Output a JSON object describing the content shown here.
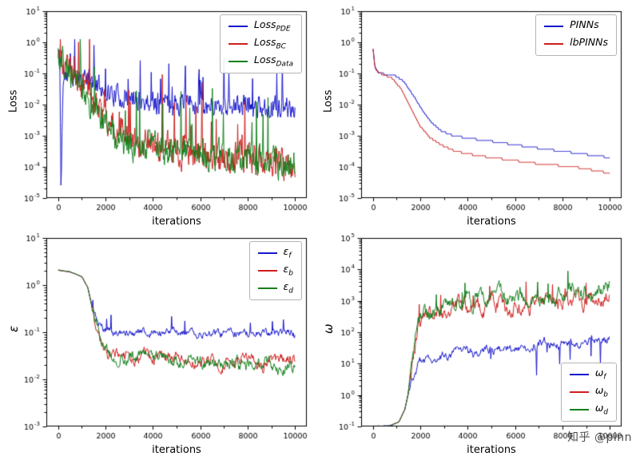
{
  "watermark": {
    "text": "知乎 @pinn"
  },
  "figure": {
    "background": "#ffffff",
    "frame_color": "#000000"
  },
  "chart_data": [
    {
      "id": "loss-components",
      "type": "line",
      "title": "",
      "xlabel": "iterations",
      "ylabel": "Loss",
      "xlim": [
        -500,
        10500
      ],
      "xticks": [
        0,
        2000,
        4000,
        6000,
        8000,
        10000
      ],
      "yticks_exponents": [
        -5,
        -4,
        -3,
        -2,
        -1,
        0,
        1
      ],
      "yscale": "log",
      "grid": false,
      "legend_position": "upper right",
      "clip": [
        -5,
        0.1
      ],
      "series": [
        {
          "legend": {
            "main": "Loss",
            "sub": "PDE"
          },
          "color": "#1616cc",
          "seed": 11,
          "noise": 0.5,
          "smooth": 0.4,
          "spikes": {
            "prob": 0.05,
            "amp": 1.6
          },
          "points": [
            [
              0,
              -0.25
            ],
            [
              70,
              -0.6
            ],
            [
              120,
              -4.9
            ],
            [
              200,
              -1.3
            ],
            [
              350,
              -1.05
            ],
            [
              700,
              -1.05
            ],
            [
              1200,
              -1.15
            ],
            [
              2000,
              -1.55
            ],
            [
              3000,
              -1.85
            ],
            [
              4500,
              -1.95
            ],
            [
              6000,
              -2.0
            ],
            [
              8000,
              -2.05
            ],
            [
              10000,
              -2.1
            ]
          ]
        },
        {
          "legend": {
            "main": "Loss",
            "sub": "BC"
          },
          "color": "#cf1d1d",
          "seed": 23,
          "noise": 0.8,
          "smooth": 0.45,
          "spikes": {
            "prob": 0.035,
            "amp": 2.2
          },
          "points": [
            [
              0,
              -0.15
            ],
            [
              120,
              -0.6
            ],
            [
              300,
              -0.85
            ],
            [
              700,
              -1.05
            ],
            [
              1200,
              -1.5
            ],
            [
              1800,
              -2.2
            ],
            [
              2600,
              -2.8
            ],
            [
              3600,
              -3.2
            ],
            [
              5000,
              -3.5
            ],
            [
              7000,
              -3.7
            ],
            [
              9000,
              -3.85
            ],
            [
              10000,
              -3.95
            ]
          ]
        },
        {
          "legend": {
            "main": "Loss",
            "sub": "Data"
          },
          "color": "#13801c",
          "seed": 37,
          "noise": 0.8,
          "smooth": 0.45,
          "spikes": {
            "prob": 0.03,
            "amp": 1.8
          },
          "points": [
            [
              0,
              -0.2
            ],
            [
              150,
              -0.6
            ],
            [
              400,
              -0.95
            ],
            [
              900,
              -1.15
            ],
            [
              1500,
              -2.1
            ],
            [
              2200,
              -2.9
            ],
            [
              3200,
              -3.3
            ],
            [
              4500,
              -3.5
            ],
            [
              6500,
              -3.65
            ],
            [
              8500,
              -3.8
            ],
            [
              10000,
              -3.9
            ]
          ]
        }
      ]
    },
    {
      "id": "pinns-vs-lbpinns",
      "type": "line",
      "title": "",
      "xlabel": "iterations",
      "ylabel": "Loss",
      "xlim": [
        -500,
        10500
      ],
      "xticks": [
        0,
        2000,
        4000,
        6000,
        8000,
        10000
      ],
      "yticks_exponents": [
        -5,
        -4,
        -3,
        -2,
        -1,
        0,
        1
      ],
      "yscale": "log",
      "grid": false,
      "legend_position": "upper right",
      "clip": [
        -5,
        1
      ],
      "series": [
        {
          "legend": {
            "main": "PINNs",
            "sub": ""
          },
          "color": "#1616cc",
          "seed": 41,
          "noise": 0,
          "smooth": 0,
          "quantize": 0.07,
          "points": [
            [
              0,
              -0.2
            ],
            [
              90,
              -0.8
            ],
            [
              250,
              -1.0
            ],
            [
              900,
              -1.05
            ],
            [
              1300,
              -1.25
            ],
            [
              1700,
              -1.7
            ],
            [
              2100,
              -2.2
            ],
            [
              2500,
              -2.6
            ],
            [
              2900,
              -2.85
            ],
            [
              3400,
              -3.0
            ],
            [
              4200,
              -3.1
            ],
            [
              5200,
              -3.2
            ],
            [
              6500,
              -3.35
            ],
            [
              8000,
              -3.5
            ],
            [
              9000,
              -3.6
            ],
            [
              10000,
              -3.7
            ]
          ]
        },
        {
          "legend": {
            "main": "lbPINNs",
            "sub": ""
          },
          "color": "#cf1d1d",
          "seed": 43,
          "noise": 0,
          "smooth": 0,
          "quantize": 0.07,
          "points": [
            [
              0,
              -0.18
            ],
            [
              90,
              -0.85
            ],
            [
              300,
              -1.0
            ],
            [
              800,
              -1.15
            ],
            [
              1200,
              -1.5
            ],
            [
              1600,
              -2.1
            ],
            [
              2000,
              -2.7
            ],
            [
              2400,
              -3.05
            ],
            [
              2900,
              -3.3
            ],
            [
              3500,
              -3.5
            ],
            [
              4500,
              -3.65
            ],
            [
              5500,
              -3.75
            ],
            [
              7000,
              -3.9
            ],
            [
              8500,
              -4.0
            ],
            [
              10000,
              -4.2
            ]
          ]
        }
      ]
    },
    {
      "id": "epsilon",
      "type": "line",
      "title": "",
      "xlabel": "iterations",
      "ylabel": "ε",
      "xlim": [
        -500,
        10500
      ],
      "xticks": [
        0,
        2000,
        4000,
        6000,
        8000,
        10000
      ],
      "yticks_exponents": [
        -3,
        -2,
        -1,
        0,
        1
      ],
      "yscale": "log",
      "grid": false,
      "legend_position": "upper right",
      "clip": [
        -3,
        0.35
      ],
      "series": [
        {
          "legend": {
            "main": "ε",
            "sub": "f"
          },
          "color": "#1616cc",
          "seed": 53,
          "noise": 0.25,
          "smooth": 0.75,
          "noise_from": 1400,
          "spikes": {
            "prob": 0.02,
            "amp": 0.35
          },
          "points": [
            [
              0,
              0.32
            ],
            [
              500,
              0.28
            ],
            [
              1000,
              0.18
            ],
            [
              1250,
              -0.05
            ],
            [
              1500,
              -0.6
            ],
            [
              1800,
              -0.9
            ],
            [
              2300,
              -0.97
            ],
            [
              3500,
              -1.0
            ],
            [
              6000,
              -1.0
            ],
            [
              8000,
              -1.02
            ],
            [
              10000,
              -1.05
            ]
          ]
        },
        {
          "legend": {
            "main": "ε",
            "sub": "b"
          },
          "color": "#cf1d1d",
          "seed": 59,
          "noise": 0.5,
          "smooth": 0.82,
          "noise_from": 1400,
          "points": [
            [
              0,
              0.32
            ],
            [
              500,
              0.28
            ],
            [
              1000,
              0.18
            ],
            [
              1250,
              -0.05
            ],
            [
              1500,
              -0.62
            ],
            [
              1800,
              -1.15
            ],
            [
              2300,
              -1.45
            ],
            [
              3000,
              -1.5
            ],
            [
              5000,
              -1.55
            ],
            [
              7000,
              -1.6
            ],
            [
              9000,
              -1.68
            ],
            [
              10000,
              -1.6
            ]
          ]
        },
        {
          "legend": {
            "main": "ε",
            "sub": "d"
          },
          "color": "#13801c",
          "seed": 61,
          "noise": 0.55,
          "smooth": 0.82,
          "noise_from": 1400,
          "points": [
            [
              0,
              0.32
            ],
            [
              500,
              0.28
            ],
            [
              1000,
              0.18
            ],
            [
              1250,
              -0.05
            ],
            [
              1500,
              -0.64
            ],
            [
              1800,
              -1.2
            ],
            [
              2300,
              -1.5
            ],
            [
              3000,
              -1.55
            ],
            [
              5000,
              -1.6
            ],
            [
              7000,
              -1.68
            ],
            [
              10000,
              -1.75
            ]
          ]
        }
      ]
    },
    {
      "id": "omega",
      "type": "line",
      "title": "",
      "xlabel": "iterations",
      "ylabel": "ω",
      "xlim": [
        -500,
        10500
      ],
      "xticks": [
        0,
        2000,
        4000,
        6000,
        8000,
        10000
      ],
      "yticks_exponents": [
        -1,
        0,
        1,
        2,
        3,
        4,
        5
      ],
      "yscale": "log",
      "grid": false,
      "legend_position": "lower right",
      "clip": [
        -1,
        3.95
      ],
      "series": [
        {
          "legend": {
            "main": "ω",
            "sub": "f"
          },
          "color": "#1616cc",
          "seed": 67,
          "noise": 0.5,
          "smooth": 0.8,
          "noise_from": 1500,
          "spikes": {
            "prob": 0.025,
            "amp": -0.8
          },
          "points": [
            [
              0,
              -1.0
            ],
            [
              700,
              -0.98
            ],
            [
              1100,
              -0.85
            ],
            [
              1350,
              -0.45
            ],
            [
              1600,
              0.4
            ],
            [
              1900,
              0.95
            ],
            [
              2400,
              1.1
            ],
            [
              3500,
              1.3
            ],
            [
              5000,
              1.45
            ],
            [
              7000,
              1.6
            ],
            [
              9000,
              1.75
            ],
            [
              10000,
              1.8
            ]
          ]
        },
        {
          "legend": {
            "main": "ω",
            "sub": "b"
          },
          "color": "#cf1d1d",
          "seed": 71,
          "noise": 1.2,
          "smooth": 0.85,
          "noise_from": 1500,
          "spikes": {
            "prob": 0.02,
            "amp": 0.7
          },
          "points": [
            [
              0,
              -1.0
            ],
            [
              700,
              -0.98
            ],
            [
              1100,
              -0.85
            ],
            [
              1350,
              -0.45
            ],
            [
              1600,
              0.45
            ],
            [
              1900,
              2.2
            ],
            [
              2400,
              2.55
            ],
            [
              3500,
              2.65
            ],
            [
              5000,
              2.8
            ],
            [
              7000,
              2.95
            ],
            [
              9000,
              3.1
            ],
            [
              10000,
              3.2
            ]
          ]
        },
        {
          "legend": {
            "main": "ω",
            "sub": "d"
          },
          "color": "#13801c",
          "seed": 73,
          "noise": 1.2,
          "smooth": 0.85,
          "noise_from": 1500,
          "spikes": {
            "prob": 0.025,
            "amp": 0.8
          },
          "points": [
            [
              0,
              -1.0
            ],
            [
              700,
              -0.98
            ],
            [
              1100,
              -0.85
            ],
            [
              1350,
              -0.45
            ],
            [
              1600,
              0.5
            ],
            [
              1900,
              2.4
            ],
            [
              2400,
              2.7
            ],
            [
              3500,
              2.8
            ],
            [
              5000,
              2.95
            ],
            [
              7000,
              3.1
            ],
            [
              9000,
              3.3
            ],
            [
              10000,
              3.6
            ]
          ]
        }
      ]
    }
  ]
}
